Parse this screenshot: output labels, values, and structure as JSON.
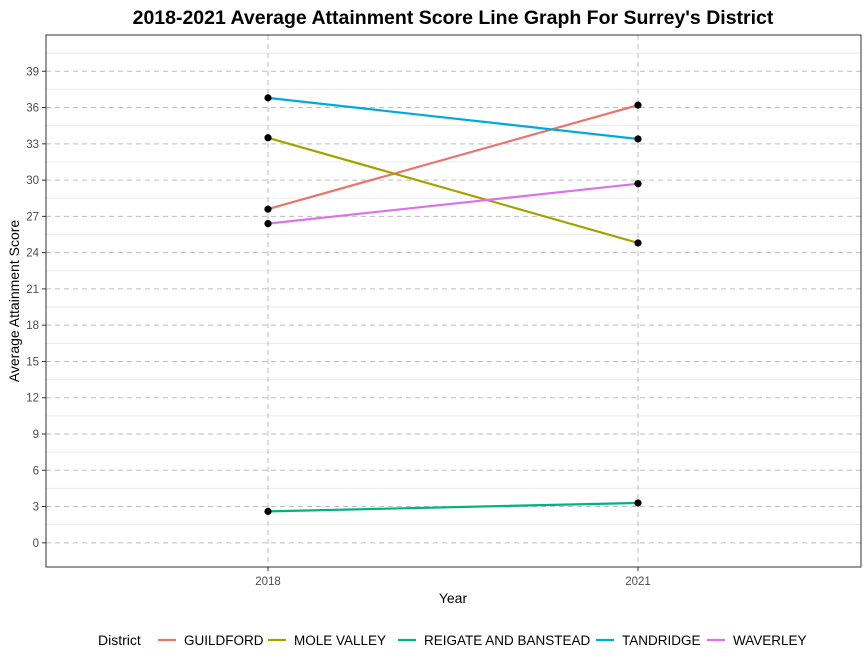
{
  "chart_data": {
    "type": "line",
    "title": "2018-2021 Average Attainment Score Line Graph For Surrey's District",
    "xlabel": "Year",
    "ylabel": "Average Attainment Score",
    "categories": [
      "2018",
      "2021"
    ],
    "yticks": [
      0,
      3,
      6,
      9,
      12,
      15,
      18,
      21,
      24,
      27,
      30,
      33,
      36,
      39
    ],
    "ylim": [
      -2.0,
      42.0
    ],
    "grid": true,
    "legend_title": "District",
    "legend_position": "bottom",
    "series": [
      {
        "name": "GUILDFORD",
        "color": "#E7766E",
        "values": [
          27.6,
          36.2
        ]
      },
      {
        "name": "MOLE VALLEY",
        "color": "#A3A300",
        "values": [
          33.5,
          24.8
        ]
      },
      {
        "name": "REIGATE AND BANSTEAD",
        "color": "#00B381",
        "values": [
          2.6,
          3.3
        ]
      },
      {
        "name": "TANDRIDGE",
        "color": "#00A8E0",
        "values": [
          36.8,
          33.4
        ]
      },
      {
        "name": "WAVERLEY",
        "color": "#DB72E8",
        "values": [
          26.4,
          29.7
        ]
      }
    ]
  }
}
